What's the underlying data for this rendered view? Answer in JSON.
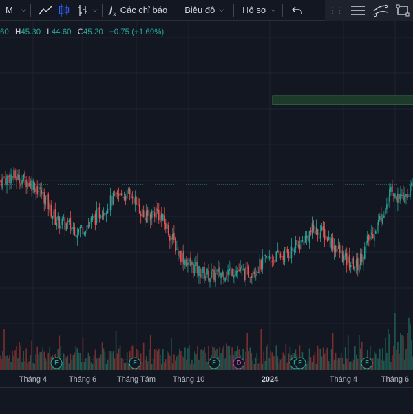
{
  "toolbar": {
    "interval": "M",
    "indicators_label": "Các chỉ báo",
    "chart_label": "Biêu đô",
    "profile_label": "Hô sơ"
  },
  "legend": {
    "o_tail": "60",
    "h_key": "H",
    "h_val": "45.30",
    "l_key": "L",
    "l_val": "44.60",
    "c_key": "C",
    "c_val": "45.20",
    "change": "+0.75 (+1.69%)"
  },
  "time_axis": {
    "labels": [
      "Tháng 4",
      "Tháng 6",
      "Tháng Tám",
      "Tháng 10",
      "2024",
      "Tháng 4",
      "Tháng 6"
    ]
  },
  "event_markers": [
    "F",
    "F",
    "F",
    "D",
    "F",
    "F",
    "F"
  ],
  "colors": {
    "up": "#26a69a",
    "down": "#ef5350",
    "background": "#131722"
  },
  "chart_data": {
    "type": "candlestick",
    "series": [
      {
        "name": "price",
        "x_labels": [
          "Tháng 4",
          "Tháng 6",
          "Tháng Tám",
          "Tháng 10",
          "2024",
          "Tháng 4",
          "Tháng 6"
        ],
        "close_path": [
          44.2,
          44.5,
          44.3,
          44.0,
          43.2,
          41.8,
          41.5,
          41.2,
          41.6,
          42.3,
          43.0,
          43.4,
          43.2,
          41.9,
          42.4,
          41.3,
          39.8,
          39.1,
          38.6,
          38.4,
          38.6,
          38.8,
          38.5,
          38.9,
          39.4,
          39.6,
          39.9,
          40.4,
          41.2,
          41.0,
          40.2,
          39.3,
          39.0,
          40.6,
          41.8,
          43.6,
          43.2,
          44.0
        ]
      }
    ],
    "last_close": 45.2,
    "change": 0.75,
    "change_pct": 1.69
  }
}
